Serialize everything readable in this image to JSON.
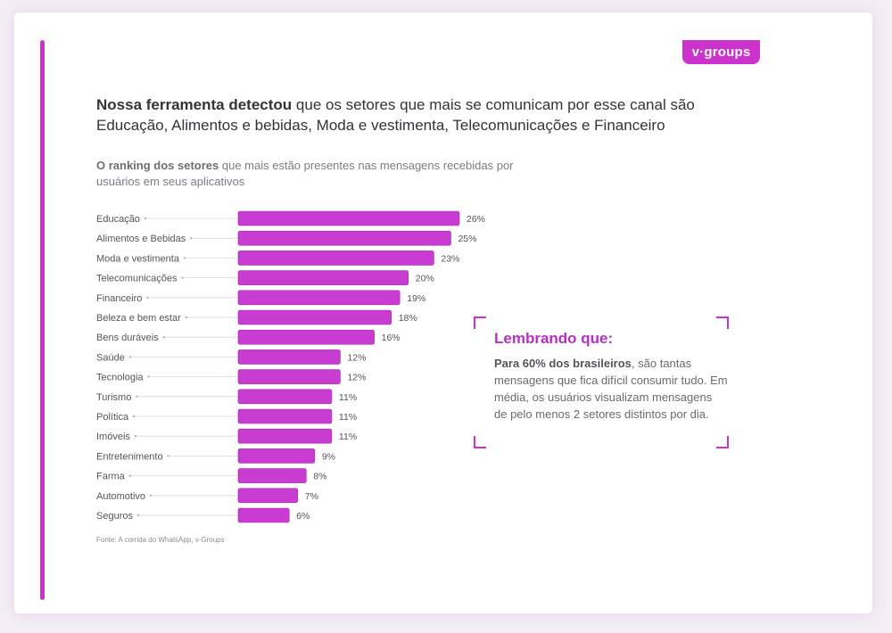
{
  "brand": {
    "logo_text": "v·groups",
    "accent_color": "#cc33cc",
    "bar_color": "#c93cd1",
    "bar_border_color": "#a62ab0",
    "callout_title_color": "#b92fc5"
  },
  "headline": {
    "bold": "Nossa ferramenta detectou",
    "rest": " que os setores que mais se comunicam por esse canal são Educação, Alimentos e bebidas, Moda e vestimenta, Telecomunicações e Financeiro"
  },
  "subheadline": {
    "bold": "O ranking dos setores",
    "rest": " que mais estão presentes nas mensagens recebidas por usuários em seus aplicativos"
  },
  "chart_data": {
    "type": "bar",
    "orientation": "horizontal",
    "title": "",
    "xlabel": "",
    "ylabel": "",
    "value_suffix": "%",
    "xlim": [
      0,
      26
    ],
    "grid": false,
    "legend": "none",
    "categories": [
      "Educação",
      "Alimentos e Bebidas",
      "Moda e vestimenta",
      "Telecomunicações",
      "Financeiro",
      "Beleza e bem estar",
      "Bens duráveis",
      "Saúde",
      "Tecnologia",
      "Turismo",
      "Política",
      "Imóveis",
      "Entretenimento",
      "Farma",
      "Automotivo",
      "Seguros"
    ],
    "values": [
      26,
      25,
      23,
      20,
      19,
      18,
      16,
      12,
      12,
      11,
      11,
      11,
      9,
      8,
      7,
      6
    ]
  },
  "source": "Fonte: A corrida do WhatsApp, v-Groups",
  "callout": {
    "title": "Lembrando que:",
    "body_bold": "Para 60% dos brasileiros",
    "body_rest": ", são tantas mensagens que fica difícil consumir tudo. Em média, os usuários visualizam mensagens de pelo menos 2 setores distintos por dia."
  }
}
